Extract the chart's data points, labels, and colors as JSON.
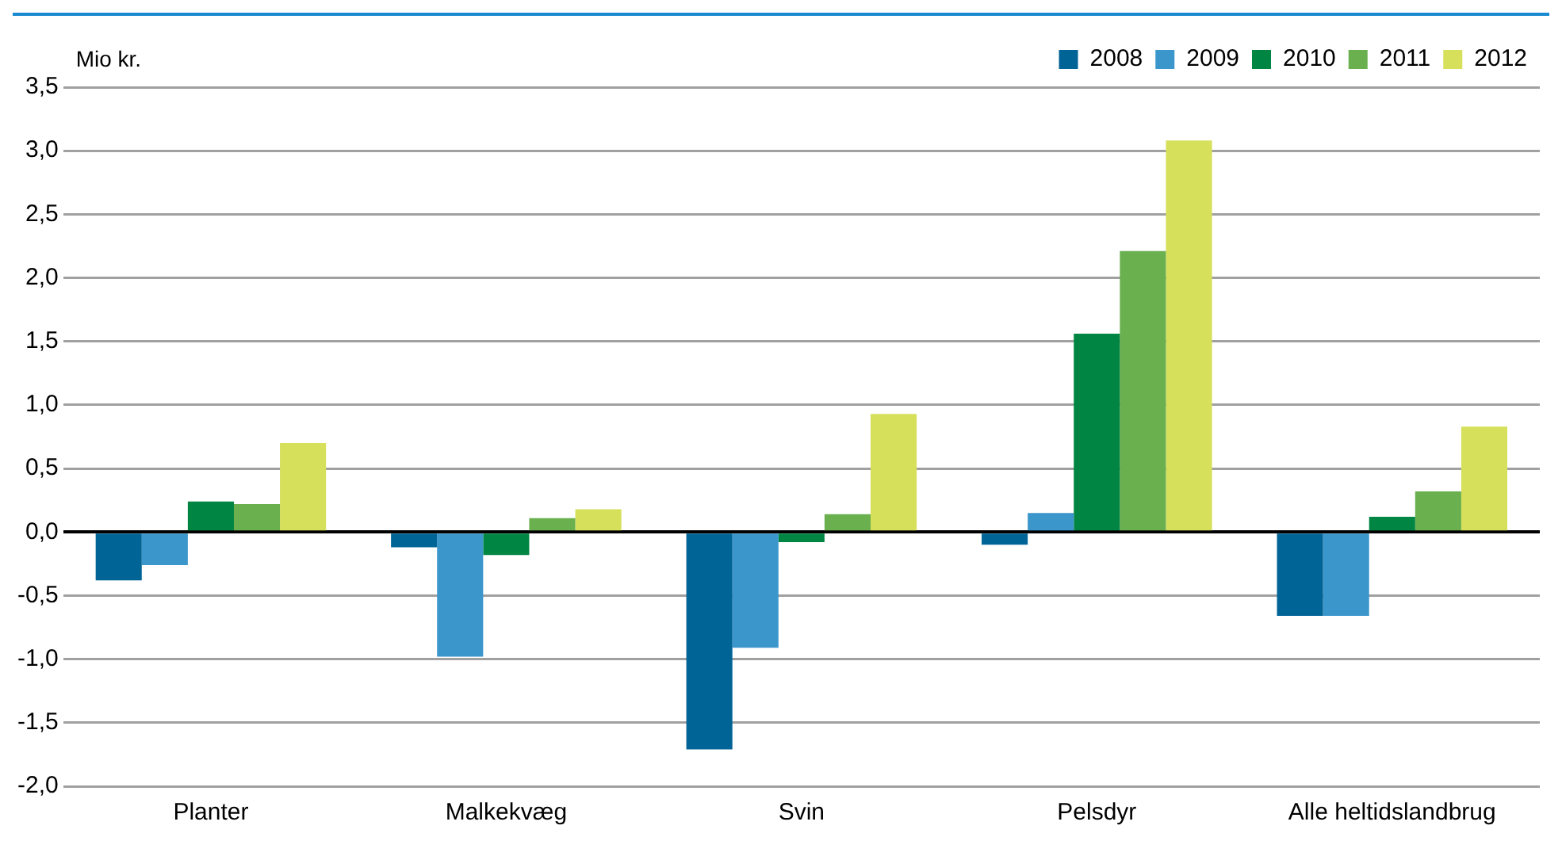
{
  "chart_data": {
    "type": "bar",
    "ylabel": "Mio kr.",
    "categories": [
      "Planter",
      "Malkekvæg",
      "Svin",
      "Pelsdyr",
      "Alle heltidslandbrug"
    ],
    "series": [
      {
        "name": "2008",
        "color": "#006496",
        "values": [
          -0.38,
          -0.12,
          -1.71,
          -0.1,
          -0.66
        ]
      },
      {
        "name": "2009",
        "color": "#3a96cb",
        "values": [
          -0.26,
          -0.98,
          -0.91,
          0.15,
          -0.66
        ]
      },
      {
        "name": "2010",
        "color": "#008542",
        "values": [
          0.24,
          -0.18,
          -0.08,
          1.56,
          0.12
        ]
      },
      {
        "name": "2011",
        "color": "#6ab04f",
        "values": [
          0.22,
          0.11,
          0.14,
          2.21,
          0.32
        ]
      },
      {
        "name": "2012",
        "color": "#d6e05a",
        "values": [
          0.7,
          0.18,
          0.93,
          3.08,
          0.83
        ]
      }
    ],
    "ylim": [
      -2,
      3.5
    ],
    "yticks": [
      {
        "value": -2,
        "label": "-2,0"
      },
      {
        "value": -1.5,
        "label": "-1,5"
      },
      {
        "value": -1,
        "label": "-1,0"
      },
      {
        "value": -0.5,
        "label": "-0,5"
      },
      {
        "value": 0,
        "label": "0,0"
      },
      {
        "value": 0.5,
        "label": "0,5"
      },
      {
        "value": 1,
        "label": "1,0"
      },
      {
        "value": 1.5,
        "label": "1,5"
      },
      {
        "value": 2,
        "label": "2,0"
      },
      {
        "value": 2.5,
        "label": "2,5"
      },
      {
        "value": 3,
        "label": "3,0"
      },
      {
        "value": 3.5,
        "label": "3,5"
      }
    ],
    "grid": "y",
    "legend": "top right"
  }
}
